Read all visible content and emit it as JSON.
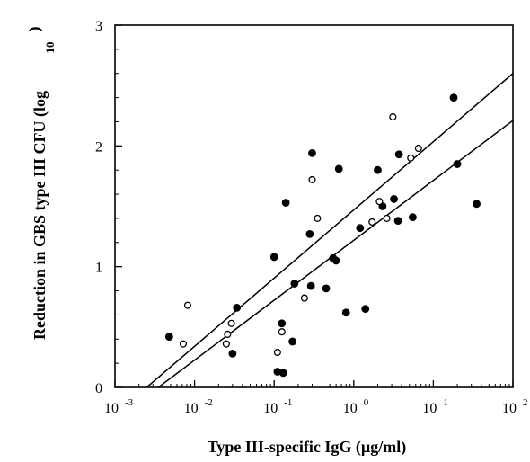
{
  "chart_data": {
    "type": "scatter",
    "x_scale": "log",
    "xlim": [
      0.001,
      100
    ],
    "ylim": [
      0,
      3
    ],
    "x_ticks": [
      {
        "base": "10",
        "exp": "-3"
      },
      {
        "base": "10",
        "exp": "-2"
      },
      {
        "base": "10",
        "exp": "-1"
      },
      {
        "base": "10",
        "exp": "0"
      },
      {
        "base": "10",
        "exp": "1"
      },
      {
        "base": "10",
        "exp": "2"
      }
    ],
    "y_ticks": [
      "0",
      "1",
      "2",
      "3"
    ],
    "xlabel": "Type  III-specific  IgG  (µg/ml)",
    "ylabel_main": "Reduction  in  GBS type III CFU   (log",
    "ylabel_sub": "10",
    "ylabel_close": ")",
    "grid": false,
    "series": [
      {
        "marker": "filled-circle",
        "color": "#000000",
        "points": [
          [
            0.0048,
            0.42
          ],
          [
            0.03,
            0.28
          ],
          [
            0.034,
            0.66
          ],
          [
            0.1,
            1.08
          ],
          [
            0.11,
            0.13
          ],
          [
            0.125,
            0.53
          ],
          [
            0.13,
            0.12
          ],
          [
            0.14,
            1.53
          ],
          [
            0.17,
            0.38
          ],
          [
            0.18,
            0.86
          ],
          [
            0.28,
            1.27
          ],
          [
            0.29,
            0.84
          ],
          [
            0.3,
            1.94
          ],
          [
            0.45,
            0.82
          ],
          [
            0.55,
            1.07
          ],
          [
            0.6,
            1.05
          ],
          [
            0.65,
            1.81
          ],
          [
            0.8,
            0.62
          ],
          [
            1.2,
            1.32
          ],
          [
            1.4,
            0.65
          ],
          [
            2.0,
            1.8
          ],
          [
            2.3,
            1.5
          ],
          [
            3.2,
            1.56
          ],
          [
            3.6,
            1.38
          ],
          [
            3.7,
            1.93
          ],
          [
            5.5,
            1.41
          ],
          [
            18,
            2.4
          ],
          [
            20,
            1.85
          ],
          [
            35,
            1.52
          ]
        ]
      },
      {
        "marker": "open-circle",
        "color": "#000000",
        "points": [
          [
            0.0072,
            0.36
          ],
          [
            0.0082,
            0.68
          ],
          [
            0.025,
            0.36
          ],
          [
            0.026,
            0.44
          ],
          [
            0.029,
            0.53
          ],
          [
            0.11,
            0.29
          ],
          [
            0.125,
            0.46
          ],
          [
            0.24,
            0.74
          ],
          [
            0.3,
            1.72
          ],
          [
            0.35,
            1.4
          ],
          [
            1.7,
            1.37
          ],
          [
            2.1,
            1.54
          ],
          [
            2.6,
            1.4
          ],
          [
            3.1,
            2.24
          ],
          [
            5.2,
            1.9
          ],
          [
            6.5,
            1.98
          ]
        ]
      }
    ],
    "fit_lines": [
      {
        "style": "solid",
        "color": "#000000",
        "from": [
          0.0025,
          0
        ],
        "to": [
          100,
          2.6
        ]
      },
      {
        "style": "solid",
        "color": "#000000",
        "from": [
          0.0035,
          0
        ],
        "to": [
          100,
          2.21
        ]
      }
    ]
  }
}
